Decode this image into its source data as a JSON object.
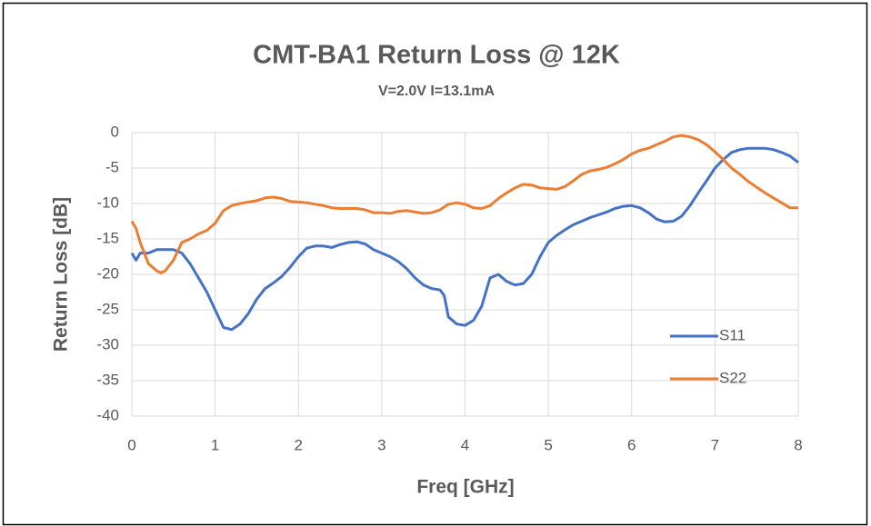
{
  "chart_data": {
    "type": "line",
    "title": "CMT-BA1 Return Loss @ 12K",
    "subtitle": "V=2.0V I=13.1mA",
    "x_label": "Freq [GHz]",
    "y_label": "Return Loss [dB]",
    "xlim": [
      0,
      8
    ],
    "ylim": [
      -40,
      0
    ],
    "xticks": [
      0,
      1,
      2,
      3,
      4,
      5,
      6,
      7,
      8
    ],
    "yticks": [
      0,
      -5,
      -10,
      -15,
      -20,
      -25,
      -30,
      -35,
      -40
    ],
    "grid": true,
    "legend": "lower right",
    "series": [
      {
        "name": "S11",
        "color": "#4472c4",
        "x": [
          0,
          0.05,
          0.1,
          0.2,
          0.3,
          0.4,
          0.5,
          0.6,
          0.7,
          0.8,
          0.9,
          1.0,
          1.1,
          1.2,
          1.3,
          1.4,
          1.5,
          1.6,
          1.7,
          1.8,
          1.9,
          2.0,
          2.1,
          2.2,
          2.3,
          2.4,
          2.5,
          2.6,
          2.7,
          2.8,
          2.9,
          3.0,
          3.1,
          3.2,
          3.3,
          3.4,
          3.5,
          3.6,
          3.7,
          3.75,
          3.8,
          3.9,
          4.0,
          4.1,
          4.2,
          4.3,
          4.4,
          4.5,
          4.6,
          4.7,
          4.8,
          4.9,
          5.0,
          5.1,
          5.2,
          5.3,
          5.4,
          5.5,
          5.6,
          5.7,
          5.8,
          5.9,
          6.0,
          6.1,
          6.2,
          6.3,
          6.4,
          6.5,
          6.6,
          6.7,
          6.8,
          6.9,
          7.0,
          7.1,
          7.2,
          7.3,
          7.4,
          7.5,
          7.6,
          7.7,
          7.8,
          7.9,
          8.0
        ],
        "values": [
          -17,
          -18,
          -17,
          -17,
          -16.5,
          -16.5,
          -16.5,
          -17,
          -18.5,
          -20.5,
          -22.5,
          -25,
          -27.5,
          -27.8,
          -27,
          -25.5,
          -23.5,
          -22,
          -21.2,
          -20.3,
          -19,
          -17.5,
          -16.3,
          -16,
          -16,
          -16.2,
          -15.8,
          -15.5,
          -15.4,
          -15.7,
          -16.5,
          -17,
          -17.5,
          -18.2,
          -19.2,
          -20.5,
          -21.5,
          -22,
          -22.2,
          -23,
          -26,
          -27,
          -27.2,
          -26.5,
          -24.5,
          -20.5,
          -20,
          -21,
          -21.5,
          -21.3,
          -20,
          -17.5,
          -15.5,
          -14.5,
          -13.7,
          -13,
          -12.5,
          -12,
          -11.6,
          -11.2,
          -10.7,
          -10.4,
          -10.3,
          -10.6,
          -11.3,
          -12.2,
          -12.6,
          -12.5,
          -11.8,
          -10.3,
          -8.5,
          -6.8,
          -5,
          -3.8,
          -2.8,
          -2.4,
          -2.2,
          -2.2,
          -2.2,
          -2.4,
          -2.8,
          -3.3,
          -4.2
        ]
      },
      {
        "name": "S22",
        "color": "#ed7d31",
        "x": [
          0,
          0.05,
          0.1,
          0.2,
          0.3,
          0.35,
          0.4,
          0.5,
          0.6,
          0.7,
          0.8,
          0.9,
          1.0,
          1.1,
          1.2,
          1.3,
          1.4,
          1.5,
          1.6,
          1.7,
          1.8,
          1.9,
          2.0,
          2.1,
          2.2,
          2.3,
          2.4,
          2.5,
          2.6,
          2.7,
          2.8,
          2.9,
          3.0,
          3.1,
          3.2,
          3.3,
          3.4,
          3.5,
          3.6,
          3.7,
          3.8,
          3.9,
          4.0,
          4.1,
          4.2,
          4.3,
          4.4,
          4.5,
          4.6,
          4.7,
          4.8,
          4.9,
          5.0,
          5.1,
          5.2,
          5.3,
          5.4,
          5.5,
          5.6,
          5.7,
          5.8,
          5.9,
          6.0,
          6.1,
          6.2,
          6.3,
          6.4,
          6.5,
          6.6,
          6.7,
          6.8,
          6.9,
          7.0,
          7.1,
          7.2,
          7.3,
          7.4,
          7.5,
          7.6,
          7.7,
          7.8,
          7.9,
          8.0
        ],
        "values": [
          -12.5,
          -13.5,
          -15.5,
          -18.5,
          -19.5,
          -19.8,
          -19.5,
          -18,
          -15.5,
          -15,
          -14.3,
          -13.8,
          -12.8,
          -11,
          -10.3,
          -10,
          -9.8,
          -9.6,
          -9.2,
          -9.1,
          -9.3,
          -9.7,
          -9.8,
          -9.9,
          -10.1,
          -10.3,
          -10.6,
          -10.7,
          -10.7,
          -10.7,
          -10.9,
          -11.3,
          -11.3,
          -11.4,
          -11.1,
          -11,
          -11.2,
          -11.4,
          -11.3,
          -10.9,
          -10.1,
          -9.9,
          -10.1,
          -10.6,
          -10.7,
          -10.3,
          -9.3,
          -8.5,
          -7.8,
          -7.3,
          -7.4,
          -7.8,
          -7.9,
          -8,
          -7.6,
          -6.8,
          -5.9,
          -5.4,
          -5.2,
          -4.9,
          -4.4,
          -3.8,
          -3,
          -2.5,
          -2.2,
          -1.7,
          -1.2,
          -0.6,
          -0.4,
          -0.6,
          -1,
          -1.7,
          -2.7,
          -3.8,
          -5,
          -5.9,
          -6.9,
          -7.7,
          -8.5,
          -9.2,
          -9.9,
          -10.6,
          -10.6
        ]
      }
    ]
  }
}
